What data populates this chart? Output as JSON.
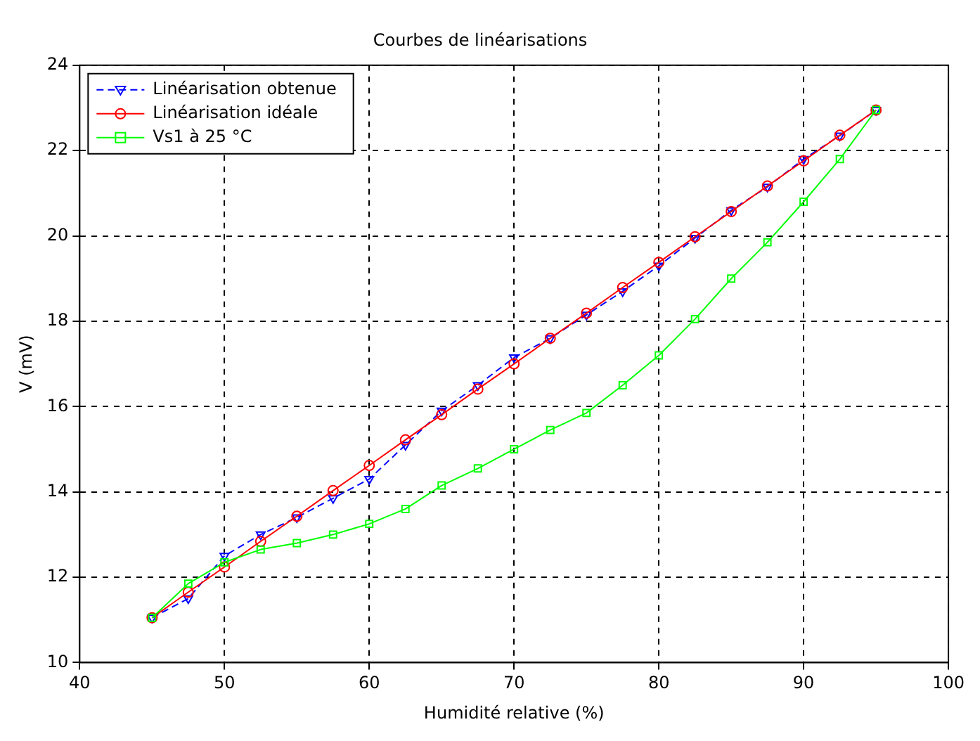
{
  "chart_data": {
    "type": "line",
    "title": "Courbes de linéarisations",
    "xlabel": "Humidité relative (%)",
    "ylabel": "V (mV)",
    "x": [
      45,
      47.5,
      50,
      52.5,
      55,
      57.5,
      60,
      62.5,
      65,
      67.5,
      70,
      72.5,
      75,
      77.5,
      80,
      82.5,
      85,
      87.5,
      90,
      92.5,
      95
    ],
    "series": [
      {
        "name": "Linéarisation obtenue",
        "color": "#0000ff",
        "line_style": "dashed",
        "marker": "triangle",
        "values": [
          11.05,
          11.5,
          12.5,
          13.0,
          13.4,
          13.85,
          14.3,
          15.1,
          15.9,
          16.5,
          17.15,
          17.6,
          18.15,
          18.7,
          19.3,
          19.95,
          20.6,
          21.15,
          21.8,
          22.35,
          22.95
        ]
      },
      {
        "name": "Linéarisation idéale",
        "color": "#ff0000",
        "line_style": "solid",
        "marker": "circle",
        "values": [
          11.05,
          11.65,
          12.24,
          12.84,
          13.43,
          14.03,
          14.62,
          15.22,
          15.81,
          16.41,
          17.0,
          17.6,
          18.19,
          18.79,
          19.38,
          19.98,
          20.57,
          21.17,
          21.76,
          22.36,
          22.95
        ]
      },
      {
        "name": "Vs1 à 25 °C",
        "color": "#00ff00",
        "line_style": "solid",
        "marker": "square",
        "values": [
          11.05,
          11.85,
          12.35,
          12.65,
          12.8,
          13.0,
          13.25,
          13.6,
          14.15,
          14.55,
          15.0,
          15.45,
          15.85,
          16.5,
          17.2,
          18.05,
          19.0,
          19.85,
          20.8,
          21.8,
          22.95
        ]
      }
    ],
    "xlim": [
      40,
      100
    ],
    "xticks": [
      40,
      50,
      60,
      70,
      80,
      90,
      100
    ],
    "ylim": [
      10,
      24
    ],
    "yticks": [
      10,
      12,
      14,
      16,
      18,
      20,
      22,
      24
    ],
    "grid": true,
    "legend": "top left"
  }
}
